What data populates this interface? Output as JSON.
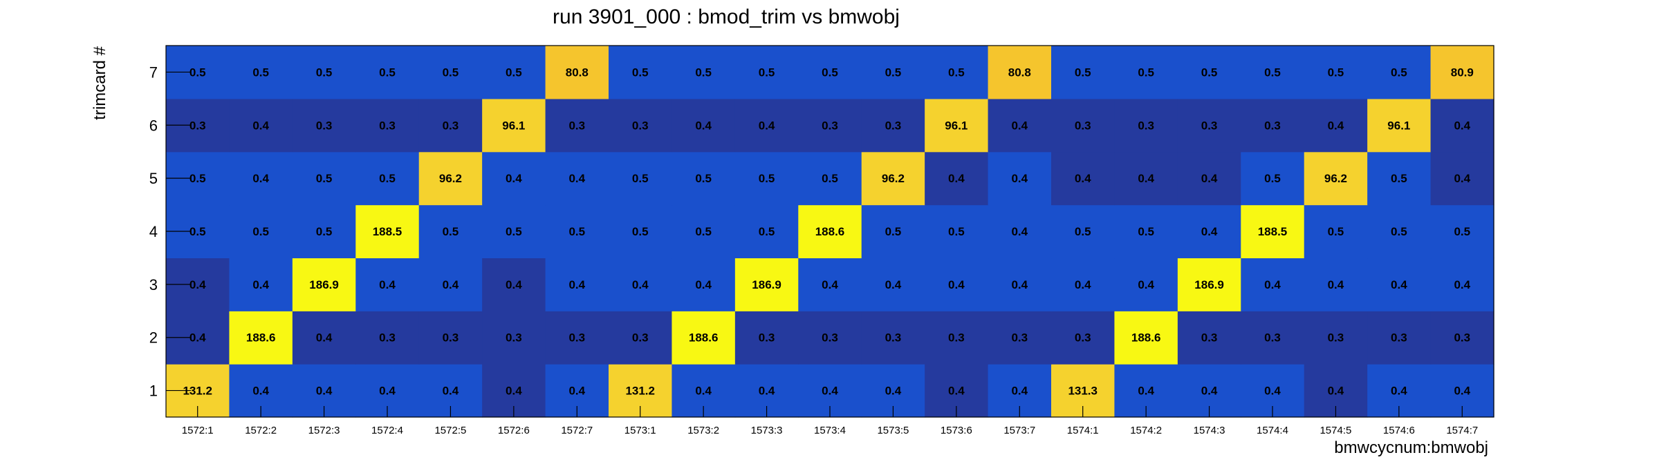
{
  "chart_data": {
    "type": "heatmap",
    "title": "run 3901_000 : bmod_trim vs bmwobj",
    "xlabel": "bmwcycnum:bmwobj",
    "ylabel": "trimcard #",
    "x": [
      "1572:1",
      "1572:2",
      "1572:3",
      "1572:4",
      "1572:5",
      "1572:6",
      "1572:7",
      "1573:1",
      "1573:2",
      "1573:3",
      "1573:4",
      "1573:5",
      "1573:6",
      "1573:7",
      "1574:1",
      "1574:2",
      "1574:3",
      "1574:4",
      "1574:5",
      "1574:6",
      "1574:7"
    ],
    "y": [
      "1",
      "2",
      "3",
      "4",
      "5",
      "6",
      "7"
    ],
    "values": [
      [
        "131.2",
        "0.4",
        "0.4",
        "0.4",
        "0.4",
        "0.4",
        "0.4",
        "131.2",
        "0.4",
        "0.4",
        "0.4",
        "0.4",
        "0.4",
        "0.4",
        "131.3",
        "0.4",
        "0.4",
        "0.4",
        "0.4",
        "0.4",
        "0.4"
      ],
      [
        "0.4",
        "188.6",
        "0.4",
        "0.3",
        "0.3",
        "0.3",
        "0.3",
        "0.3",
        "188.6",
        "0.3",
        "0.3",
        "0.3",
        "0.3",
        "0.3",
        "0.3",
        "188.6",
        "0.3",
        "0.3",
        "0.3",
        "0.3",
        "0.3"
      ],
      [
        "0.4",
        "0.4",
        "186.9",
        "0.4",
        "0.4",
        "0.4",
        "0.4",
        "0.4",
        "0.4",
        "186.9",
        "0.4",
        "0.4",
        "0.4",
        "0.4",
        "0.4",
        "0.4",
        "186.9",
        "0.4",
        "0.4",
        "0.4",
        "0.4"
      ],
      [
        "0.5",
        "0.5",
        "0.5",
        "188.5",
        "0.5",
        "0.5",
        "0.5",
        "0.5",
        "0.5",
        "0.5",
        "188.6",
        "0.5",
        "0.5",
        "0.4",
        "0.5",
        "0.5",
        "0.4",
        "188.5",
        "0.5",
        "0.5",
        "0.5"
      ],
      [
        "0.5",
        "0.4",
        "0.5",
        "0.5",
        "96.2",
        "0.4",
        "0.4",
        "0.5",
        "0.5",
        "0.5",
        "0.5",
        "96.2",
        "0.4",
        "0.4",
        "0.4",
        "0.4",
        "0.4",
        "0.5",
        "96.2",
        "0.5",
        "0.4"
      ],
      [
        "0.3",
        "0.4",
        "0.3",
        "0.3",
        "0.3",
        "96.1",
        "0.3",
        "0.3",
        "0.4",
        "0.4",
        "0.3",
        "0.3",
        "96.1",
        "0.4",
        "0.3",
        "0.3",
        "0.3",
        "0.3",
        "0.4",
        "96.1",
        "0.4"
      ],
      [
        "0.5",
        "0.5",
        "0.5",
        "0.5",
        "0.5",
        "0.5",
        "80.8",
        "0.5",
        "0.5",
        "0.5",
        "0.5",
        "0.5",
        "0.5",
        "80.8",
        "0.5",
        "0.5",
        "0.5",
        "0.5",
        "0.5",
        "0.5",
        "80.9"
      ]
    ],
    "cell_colors": [
      [
        "#f5d22e",
        "#1a50cc",
        "#1a50cc",
        "#1a50cc",
        "#1a50cc",
        "#253a9e",
        "#1a50cc",
        "#f5d22e",
        "#1a50cc",
        "#1a50cc",
        "#1a50cc",
        "#1a50cc",
        "#253a9e",
        "#1a50cc",
        "#f5d22e",
        "#1a50cc",
        "#1a50cc",
        "#1a50cc",
        "#253a9e",
        "#1a50cc",
        "#1a50cc"
      ],
      [
        "#253a9e",
        "#f8f813",
        "#253a9e",
        "#253a9e",
        "#253a9e",
        "#253a9e",
        "#253a9e",
        "#253a9e",
        "#f8f813",
        "#253a9e",
        "#253a9e",
        "#253a9e",
        "#253a9e",
        "#253a9e",
        "#253a9e",
        "#f8f813",
        "#253a9e",
        "#253a9e",
        "#253a9e",
        "#253a9e",
        "#253a9e"
      ],
      [
        "#253a9e",
        "#1a50cc",
        "#f8f813",
        "#1a50cc",
        "#1a50cc",
        "#253a9e",
        "#1a50cc",
        "#1a50cc",
        "#1a50cc",
        "#f8f813",
        "#1a50cc",
        "#1a50cc",
        "#1a50cc",
        "#1a50cc",
        "#1a50cc",
        "#1a50cc",
        "#f8f813",
        "#1a50cc",
        "#1a50cc",
        "#1a50cc",
        "#1a50cc"
      ],
      [
        "#1a50cc",
        "#1a50cc",
        "#1a50cc",
        "#f8f813",
        "#1a50cc",
        "#1a50cc",
        "#1a50cc",
        "#1a50cc",
        "#1a50cc",
        "#1a50cc",
        "#f8f813",
        "#1a50cc",
        "#1a50cc",
        "#1a50cc",
        "#1a50cc",
        "#1a50cc",
        "#1a50cc",
        "#f8f813",
        "#1a50cc",
        "#1a50cc",
        "#1a50cc"
      ],
      [
        "#1a50cc",
        "#1a50cc",
        "#1a50cc",
        "#1a50cc",
        "#f5d22e",
        "#1a50cc",
        "#1a50cc",
        "#1a50cc",
        "#1a50cc",
        "#1a50cc",
        "#1a50cc",
        "#f5d22e",
        "#253a9e",
        "#1a50cc",
        "#253a9e",
        "#253a9e",
        "#253a9e",
        "#1a50cc",
        "#f5d22e",
        "#1a50cc",
        "#253a9e"
      ],
      [
        "#253a9e",
        "#253a9e",
        "#253a9e",
        "#253a9e",
        "#253a9e",
        "#f5d22e",
        "#253a9e",
        "#253a9e",
        "#253a9e",
        "#253a9e",
        "#253a9e",
        "#253a9e",
        "#f5d22e",
        "#253a9e",
        "#253a9e",
        "#253a9e",
        "#253a9e",
        "#253a9e",
        "#253a9e",
        "#f5d22e",
        "#253a9e"
      ],
      [
        "#1a50cc",
        "#1a50cc",
        "#1a50cc",
        "#1a50cc",
        "#1a50cc",
        "#1a50cc",
        "#f5c52d",
        "#1a50cc",
        "#1a50cc",
        "#1a50cc",
        "#1a50cc",
        "#1a50cc",
        "#1a50cc",
        "#f5c52d",
        "#1a50cc",
        "#1a50cc",
        "#1a50cc",
        "#1a50cc",
        "#1a50cc",
        "#1a50cc",
        "#f5c52d"
      ]
    ],
    "grid": false,
    "legend": "none"
  }
}
